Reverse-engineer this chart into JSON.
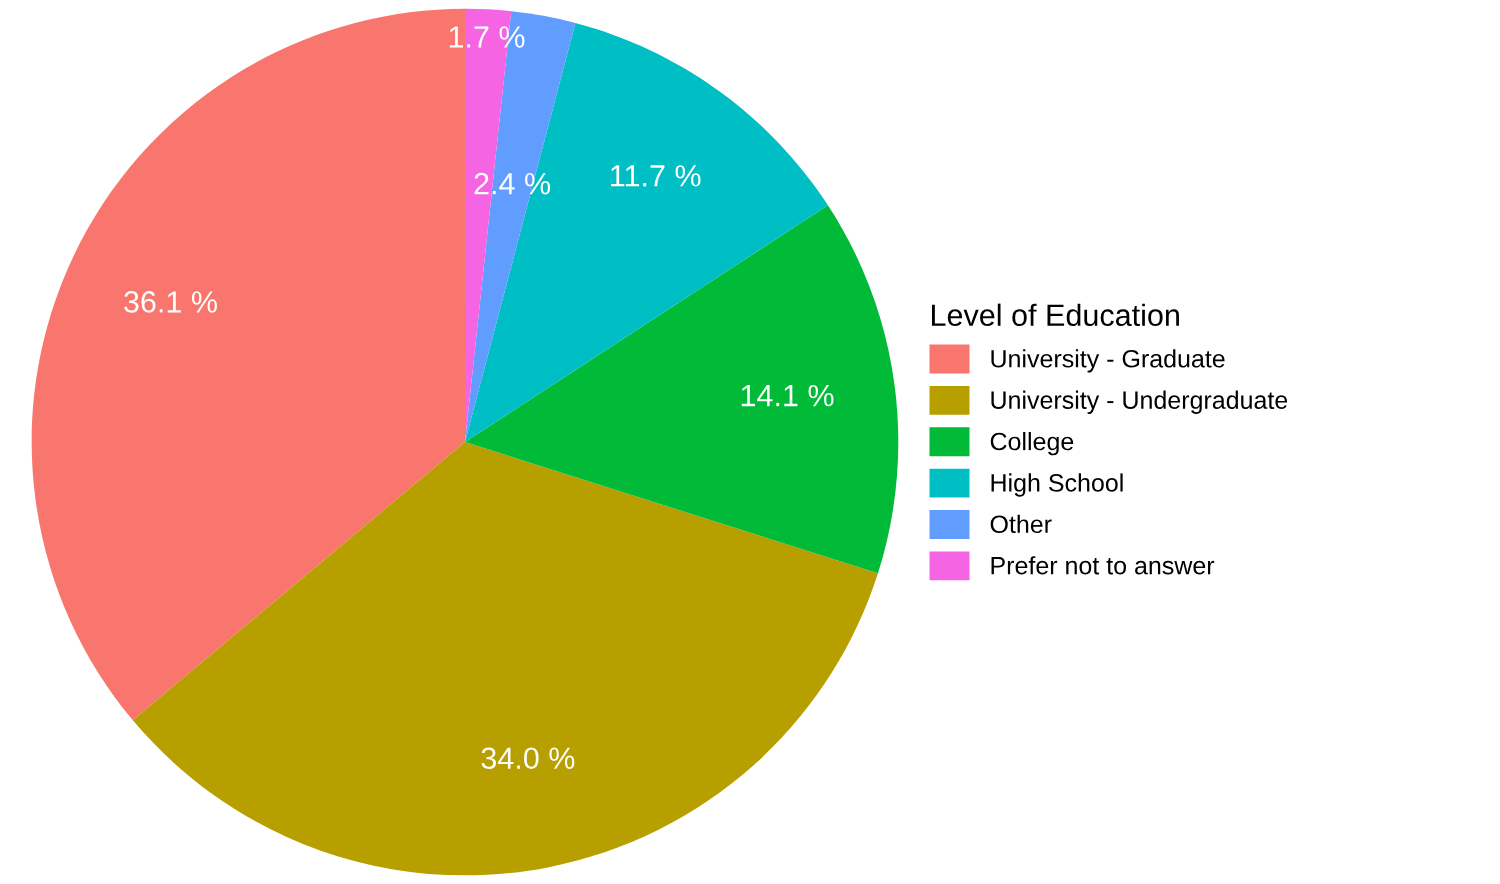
{
  "chart_data": {
    "type": "pie",
    "categories": [
      "University - Graduate",
      "University - Undergraduate",
      "College",
      "High School",
      "Other",
      "Prefer not to answer"
    ],
    "values": [
      36.1,
      34.0,
      14.1,
      11.7,
      2.4,
      1.7
    ],
    "colors": [
      "#f8766d",
      "#b79f00",
      "#00ba38",
      "#00bfc4",
      "#619cff",
      "#f564e3"
    ],
    "value_labels": [
      "36.1 %",
      "34.0 %",
      "14.1 %",
      "11.7 %",
      "2.4 %",
      "1.7 %"
    ],
    "legend_title": "Level of Education",
    "legend": "right"
  }
}
